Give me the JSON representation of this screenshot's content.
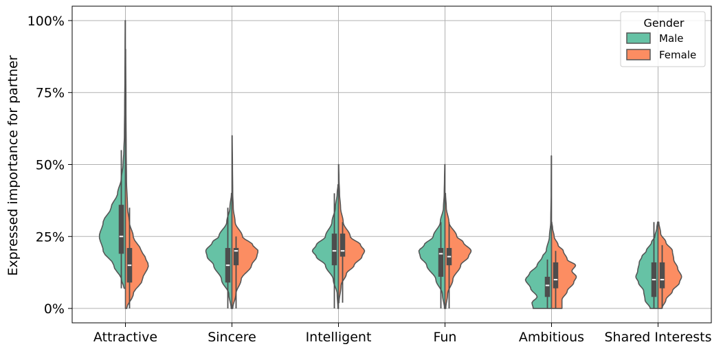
{
  "chart_data": {
    "type": "violin",
    "split": true,
    "ylabel": "Expressed importance for partner",
    "y_tick_labels": [
      "0%",
      "25%",
      "50%",
      "75%",
      "100%"
    ],
    "ylim": [
      -5,
      105
    ],
    "grid": true,
    "legend": {
      "title": "Gender",
      "position": "top-right"
    },
    "categories": [
      "Attractive",
      "Sincere",
      "Intelligent",
      "Fun",
      "Ambitious",
      "Shared Interests"
    ],
    "series": [
      {
        "name": "Male",
        "color": "#66c2a5",
        "values": [
          {
            "min": 7,
            "q1": 19,
            "median": 25,
            "q3": 36,
            "whisker_high": 55,
            "max": 100,
            "shape": [
              [
                7,
                0.05
              ],
              [
                10,
                0.15
              ],
              [
                15,
                0.45
              ],
              [
                20,
                0.85
              ],
              [
                25,
                1.0
              ],
              [
                30,
                0.85
              ],
              [
                35,
                0.55
              ],
              [
                40,
                0.3
              ],
              [
                45,
                0.16
              ],
              [
                50,
                0.09
              ],
              [
                55,
                0.06
              ],
              [
                60,
                0.04
              ],
              [
                70,
                0.03
              ],
              [
                80,
                0.02
              ],
              [
                90,
                0.015
              ],
              [
                100,
                0.01
              ]
            ]
          },
          {
            "min": 0,
            "q1": 9,
            "median": 15,
            "q3": 21,
            "whisker_high": 35,
            "max": 40,
            "shape": [
              [
                0,
                0.03
              ],
              [
                5,
                0.12
              ],
              [
                10,
                0.4
              ],
              [
                15,
                0.7
              ],
              [
                18,
                0.95
              ],
              [
                20,
                1.0
              ],
              [
                23,
                0.75
              ],
              [
                25,
                0.5
              ],
              [
                30,
                0.2
              ],
              [
                35,
                0.08
              ],
              [
                40,
                0.02
              ]
            ]
          },
          {
            "min": 0,
            "q1": 15,
            "median": 20,
            "q3": 26,
            "whisker_high": 40,
            "max": 43,
            "shape": [
              [
                0,
                0.02
              ],
              [
                5,
                0.05
              ],
              [
                10,
                0.2
              ],
              [
                15,
                0.5
              ],
              [
                18,
                0.85
              ],
              [
                20,
                1.0
              ],
              [
                22,
                0.85
              ],
              [
                25,
                0.5
              ],
              [
                30,
                0.25
              ],
              [
                35,
                0.12
              ],
              [
                40,
                0.05
              ],
              [
                43,
                0.02
              ]
            ]
          },
          {
            "min": 0,
            "q1": 11,
            "median": 19,
            "q3": 21,
            "whisker_high": 30,
            "max": 50,
            "shape": [
              [
                0,
                0.02
              ],
              [
                5,
                0.1
              ],
              [
                10,
                0.35
              ],
              [
                15,
                0.7
              ],
              [
                18,
                0.95
              ],
              [
                20,
                1.0
              ],
              [
                22,
                0.8
              ],
              [
                25,
                0.45
              ],
              [
                30,
                0.18
              ],
              [
                35,
                0.06
              ],
              [
                40,
                0.03
              ],
              [
                45,
                0.02
              ],
              [
                50,
                0.01
              ]
            ]
          },
          {
            "min": 0,
            "q1": 4,
            "median": 8,
            "q3": 11,
            "whisker_high": 17,
            "max": 53,
            "shape": [
              [
                0,
                0.7
              ],
              [
                2,
                0.75
              ],
              [
                4,
                0.55
              ],
              [
                7,
                0.8
              ],
              [
                10,
                1.0
              ],
              [
                12,
                0.85
              ],
              [
                15,
                0.55
              ],
              [
                18,
                0.35
              ],
              [
                20,
                0.2
              ],
              [
                25,
                0.08
              ],
              [
                30,
                0.03
              ],
              [
                40,
                0.015
              ],
              [
                53,
                0.01
              ]
            ]
          },
          {
            "min": 0,
            "q1": 4,
            "median": 10,
            "q3": 16,
            "whisker_high": 30,
            "max": 30,
            "shape": [
              [
                0,
                0.3
              ],
              [
                3,
                0.5
              ],
              [
                6,
                0.55
              ],
              [
                9,
                0.75
              ],
              [
                11,
                0.85
              ],
              [
                13,
                0.78
              ],
              [
                16,
                0.72
              ],
              [
                18,
                0.62
              ],
              [
                20,
                0.45
              ],
              [
                23,
                0.25
              ],
              [
                25,
                0.12
              ],
              [
                28,
                0.05
              ],
              [
                30,
                0.02
              ]
            ]
          }
        ]
      },
      {
        "name": "Female",
        "color": "#fc8d62",
        "values": [
          {
            "min": 0,
            "q1": 9,
            "median": 15,
            "q3": 21,
            "whisker_high": 35,
            "max": 90,
            "shape": [
              [
                0,
                0.05
              ],
              [
                5,
                0.3
              ],
              [
                10,
                0.65
              ],
              [
                15,
                0.88
              ],
              [
                18,
                0.75
              ],
              [
                20,
                0.6
              ],
              [
                25,
                0.3
              ],
              [
                30,
                0.15
              ],
              [
                35,
                0.08
              ],
              [
                45,
                0.04
              ],
              [
                55,
                0.03
              ],
              [
                70,
                0.02
              ],
              [
                90,
                0.01
              ]
            ]
          },
          {
            "min": 0,
            "q1": 15,
            "median": 20,
            "q3": 21,
            "whisker_high": 25,
            "max": 60,
            "shape": [
              [
                0,
                0.03
              ],
              [
                5,
                0.15
              ],
              [
                10,
                0.35
              ],
              [
                15,
                0.75
              ],
              [
                18,
                0.95
              ],
              [
                20,
                1.0
              ],
              [
                22,
                0.8
              ],
              [
                25,
                0.4
              ],
              [
                30,
                0.12
              ],
              [
                35,
                0.05
              ],
              [
                40,
                0.03
              ],
              [
                50,
                0.02
              ],
              [
                60,
                0.01
              ]
            ]
          },
          {
            "min": 2,
            "q1": 18,
            "median": 20,
            "q3": 26,
            "whisker_high": 30,
            "max": 50,
            "shape": [
              [
                2,
                0.02
              ],
              [
                8,
                0.1
              ],
              [
                12,
                0.3
              ],
              [
                15,
                0.6
              ],
              [
                18,
                0.9
              ],
              [
                20,
                1.0
              ],
              [
                22,
                0.85
              ],
              [
                25,
                0.45
              ],
              [
                30,
                0.18
              ],
              [
                35,
                0.08
              ],
              [
                40,
                0.04
              ],
              [
                45,
                0.02
              ],
              [
                50,
                0.01
              ]
            ]
          },
          {
            "min": 0,
            "q1": 15,
            "median": 18,
            "q3": 21,
            "whisker_high": 30,
            "max": 40,
            "shape": [
              [
                0,
                0.03
              ],
              [
                5,
                0.1
              ],
              [
                10,
                0.3
              ],
              [
                15,
                0.6
              ],
              [
                18,
                0.9
              ],
              [
                20,
                1.0
              ],
              [
                23,
                0.7
              ],
              [
                25,
                0.45
              ],
              [
                30,
                0.15
              ],
              [
                35,
                0.05
              ],
              [
                40,
                0.02
              ]
            ]
          },
          {
            "min": 0,
            "q1": 7,
            "median": 10,
            "q3": 16,
            "whisker_high": 20,
            "max": 30,
            "shape": [
              [
                0,
                0.4
              ],
              [
                3,
                0.4
              ],
              [
                6,
                0.6
              ],
              [
                9,
                0.85
              ],
              [
                11,
                0.95
              ],
              [
                13,
                0.78
              ],
              [
                15,
                0.92
              ],
              [
                17,
                0.6
              ],
              [
                20,
                0.45
              ],
              [
                22,
                0.25
              ],
              [
                25,
                0.1
              ],
              [
                28,
                0.04
              ],
              [
                30,
                0.01
              ]
            ]
          },
          {
            "min": 0,
            "q1": 7,
            "median": 10,
            "q3": 16,
            "whisker_high": 22,
            "max": 30,
            "shape": [
              [
                0,
                0.15
              ],
              [
                3,
                0.3
              ],
              [
                6,
                0.55
              ],
              [
                9,
                0.82
              ],
              [
                11,
                0.9
              ],
              [
                14,
                0.75
              ],
              [
                17,
                0.6
              ],
              [
                20,
                0.55
              ],
              [
                23,
                0.3
              ],
              [
                26,
                0.1
              ],
              [
                30,
                0.03
              ]
            ]
          }
        ]
      }
    ]
  }
}
